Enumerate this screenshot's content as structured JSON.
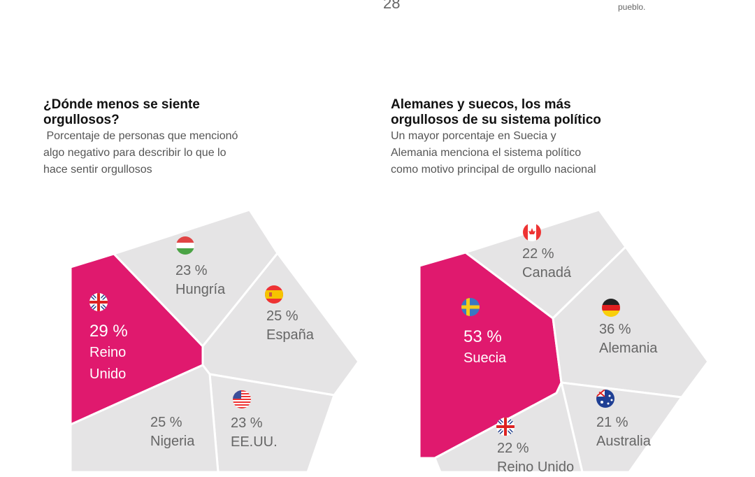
{
  "header": {
    "page_number": "28",
    "top_note": "pueblo."
  },
  "colors": {
    "highlight": "#e0196e",
    "cell": "#e5e4e5",
    "divider": "#ffffff"
  },
  "panels": [
    {
      "title_line1": "¿Dónde menos se siente",
      "title_line2": "orgullosos?",
      "subtitle_line1": " Porcentaje de personas que mencionó",
      "subtitle_line2": "algo negativo para describir lo que lo",
      "subtitle_line3": "hace sentir orgullosos",
      "cells": [
        {
          "value": "29 %",
          "name_line1": "Reino",
          "name_line2": "Unido",
          "flag": "uk-flag-icon",
          "highlight": true
        },
        {
          "value": "23 %",
          "name_line1": "Hungría",
          "flag": "hungary-flag-icon"
        },
        {
          "value": "25 %",
          "name_line1": "España",
          "flag": "spain-flag-icon"
        },
        {
          "value": "23 %",
          "name_line1": "EE.UU.",
          "flag": "usa-flag-icon"
        },
        {
          "value": "25 %",
          "name_line1": "Nigeria"
        }
      ]
    },
    {
      "title_line1": "Alemanes y suecos, los más",
      "title_line2": "orgullosos de su sistema político",
      "subtitle_line1": "Un mayor porcentaje en Suecia y",
      "subtitle_line2": "Alemania menciona el sistema político",
      "subtitle_line3": "como motivo principal de orgullo nacional",
      "cells": [
        {
          "value": "53 %",
          "name_line1": "Suecia",
          "flag": "sweden-flag-icon",
          "highlight": true
        },
        {
          "value": "22 %",
          "name_line1": "Canadá",
          "flag": "canada-flag-icon"
        },
        {
          "value": "36 %",
          "name_line1": "Alemania",
          "flag": "germany-flag-icon"
        },
        {
          "value": "21 %",
          "name_line1": "Australia",
          "flag": "australia-flag-icon"
        },
        {
          "value": "22 %",
          "name_line1": "Reino Unido",
          "flag": "uk-flag-icon"
        }
      ]
    }
  ]
}
